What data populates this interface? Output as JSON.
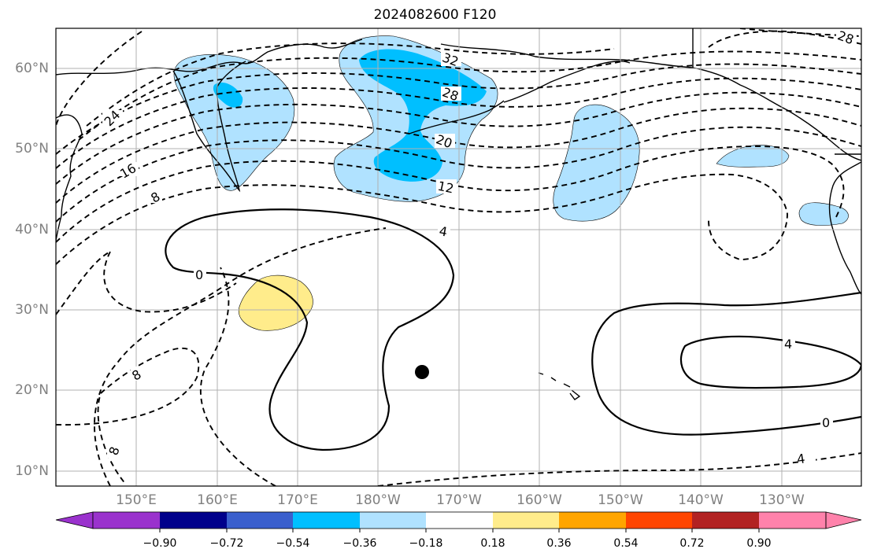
{
  "title": "2024082600 F120",
  "lat_labels": [
    "60°N",
    "50°N",
    "40°N",
    "30°N",
    "20°N",
    "10°N"
  ],
  "lon_labels": [
    "150°E",
    "160°E",
    "170°E",
    "180°W",
    "170°W",
    "160°W",
    "150°W",
    "140°W",
    "130°W"
  ],
  "contour_labels": [
    "32",
    "28",
    "20",
    "12",
    "4",
    "24",
    "16",
    "8",
    "0",
    "28",
    "4",
    "0",
    "8",
    "8",
    "4"
  ],
  "colorbar": {
    "labels": [
      "−0.90",
      "−0.72",
      "−0.54",
      "−0.36",
      "−0.18",
      "0.18",
      "0.36",
      "0.54",
      "0.72",
      "0.90"
    ],
    "colors": [
      "#9a32cd",
      "#00008b",
      "#3a5fcd",
      "#00bfff",
      "#b0e2ff",
      "#ffffff",
      "#ffec8b",
      "#ffa500",
      "#ff4500",
      "#b22222",
      "#ff82ab"
    ]
  },
  "marker": "storm-center-dot"
}
